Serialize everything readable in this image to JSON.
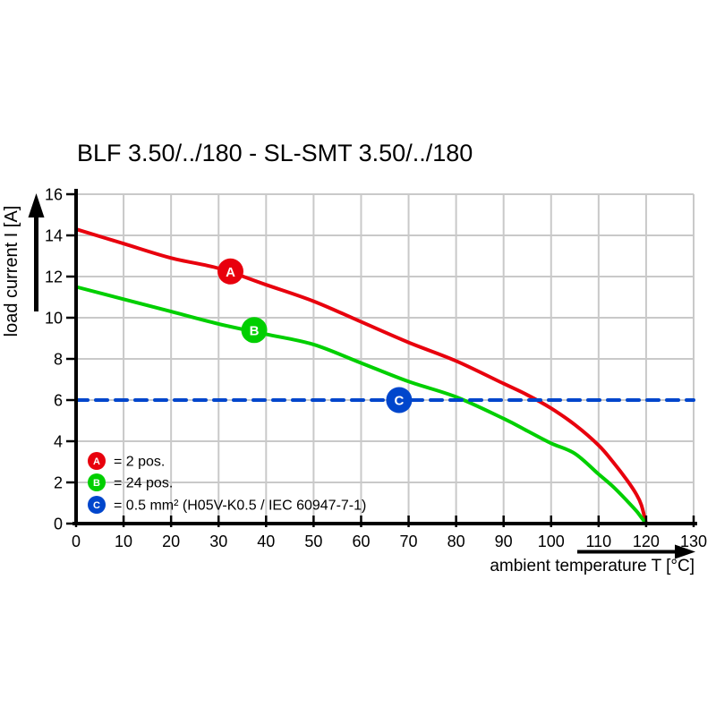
{
  "title": "BLF 3.50/../180 - SL-SMT 3.50/../180",
  "colors": {
    "series_a_red": "#e8000d",
    "series_b_green": "#00cf00",
    "series_c_blue": "#0046cc",
    "grid": "#c9c9c9",
    "axis": "#000000",
    "background": "#ffffff"
  },
  "chart_data": {
    "type": "line",
    "title": "BLF 3.50/../180 - SL-SMT 3.50/../180",
    "xlabel": "ambient temperature T [°C]",
    "ylabel": "load current I [A]",
    "xlim": [
      0,
      130
    ],
    "ylim": [
      0,
      16
    ],
    "xticks": [
      0,
      10,
      20,
      30,
      40,
      50,
      60,
      70,
      80,
      90,
      100,
      110,
      120,
      130
    ],
    "yticks": [
      0,
      2,
      4,
      6,
      8,
      10,
      12,
      14,
      16
    ],
    "grid": true,
    "legend_position": "inside-bottom-left",
    "series": [
      {
        "id": "A",
        "legend_label": "= 2 pos.",
        "color": "#e8000d",
        "line_style": "solid",
        "marker": {
          "letter": "A",
          "t": 32.5,
          "i": 12.25
        },
        "points": [
          [
            0,
            14.3
          ],
          [
            10,
            13.6
          ],
          [
            20,
            12.9
          ],
          [
            30,
            12.4
          ],
          [
            40,
            11.6
          ],
          [
            50,
            10.8
          ],
          [
            60,
            9.8
          ],
          [
            70,
            8.8
          ],
          [
            80,
            7.9
          ],
          [
            90,
            6.8
          ],
          [
            95,
            6.25
          ],
          [
            100,
            5.6
          ],
          [
            105,
            4.8
          ],
          [
            110,
            3.8
          ],
          [
            113,
            3.0
          ],
          [
            116,
            2.1
          ],
          [
            118,
            1.4
          ],
          [
            119,
            0.9
          ],
          [
            120,
            0
          ]
        ]
      },
      {
        "id": "B",
        "legend_label": "= 24 pos.",
        "color": "#00cf00",
        "line_style": "solid",
        "marker": {
          "letter": "B",
          "t": 37.5,
          "i": 9.4
        },
        "points": [
          [
            0,
            11.5
          ],
          [
            10,
            10.9
          ],
          [
            20,
            10.3
          ],
          [
            30,
            9.7
          ],
          [
            40,
            9.2
          ],
          [
            50,
            8.7
          ],
          [
            60,
            7.8
          ],
          [
            70,
            6.9
          ],
          [
            80,
            6.15
          ],
          [
            90,
            5.1
          ],
          [
            95,
            4.5
          ],
          [
            100,
            3.9
          ],
          [
            105,
            3.4
          ],
          [
            110,
            2.4
          ],
          [
            113,
            1.8
          ],
          [
            116,
            1.1
          ],
          [
            118,
            0.6
          ],
          [
            119,
            0.3
          ],
          [
            120,
            0
          ]
        ]
      },
      {
        "id": "C",
        "legend_label": "= 0.5 mm² (H05V-K0.5 / IEC 60947-7-1)",
        "color": "#0046cc",
        "line_style": "dashed",
        "marker": {
          "letter": "C",
          "t": 68,
          "i": 6
        },
        "points": [
          [
            0,
            6
          ],
          [
            130,
            6
          ]
        ]
      }
    ]
  }
}
